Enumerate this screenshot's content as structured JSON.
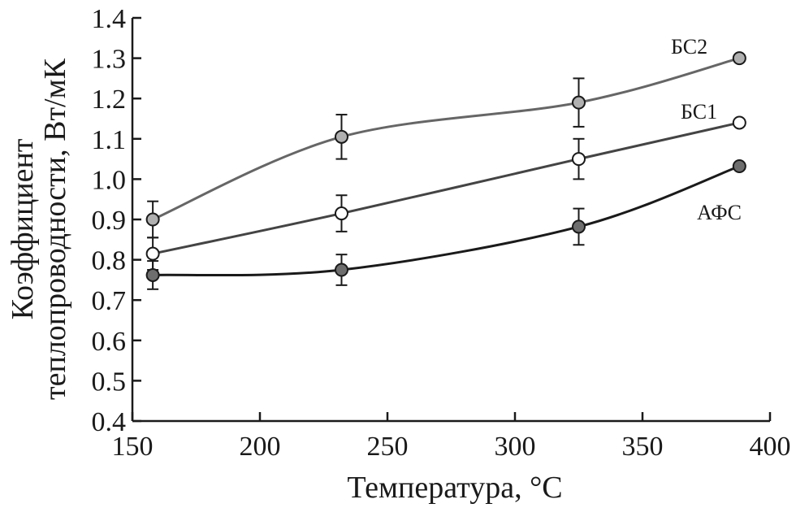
{
  "chart_data": {
    "type": "line",
    "xlabel": "Температура, °С",
    "ylabel_line1": "Коэффициент",
    "ylabel_line2": "теплопроводности, Вт/мК",
    "xlim": [
      150,
      400
    ],
    "ylim": [
      0.4,
      1.4
    ],
    "xticks": [
      150,
      200,
      250,
      300,
      350,
      400
    ],
    "yticks": [
      "0.4",
      "0.5",
      "0.6",
      "0.7",
      "0.8",
      "0.9",
      "1.0",
      "1.1",
      "1.2",
      "1.3",
      "1.4"
    ],
    "grid": false,
    "series": [
      {
        "name": "БС2",
        "marker_fill": "#b0b0b0",
        "line_color": "#666666",
        "x": [
          158,
          232,
          325,
          388
        ],
        "y": [
          0.9,
          1.105,
          1.19,
          1.3
        ],
        "err": [
          0.045,
          0.055,
          0.06,
          0
        ]
      },
      {
        "name": "БС1",
        "marker_fill": "#ffffff",
        "line_color": "#444444",
        "x": [
          158,
          232,
          325,
          388
        ],
        "y": [
          0.815,
          0.915,
          1.05,
          1.14
        ],
        "err": [
          0.04,
          0.045,
          0.05,
          0
        ]
      },
      {
        "name": "АФС",
        "marker_fill": "#6e6e6e",
        "line_color": "#1a1a1a",
        "x": [
          158,
          232,
          325,
          388
        ],
        "y": [
          0.762,
          0.775,
          0.882,
          1.032
        ],
        "err": [
          0.035,
          0.038,
          0.045,
          0
        ]
      }
    ]
  }
}
